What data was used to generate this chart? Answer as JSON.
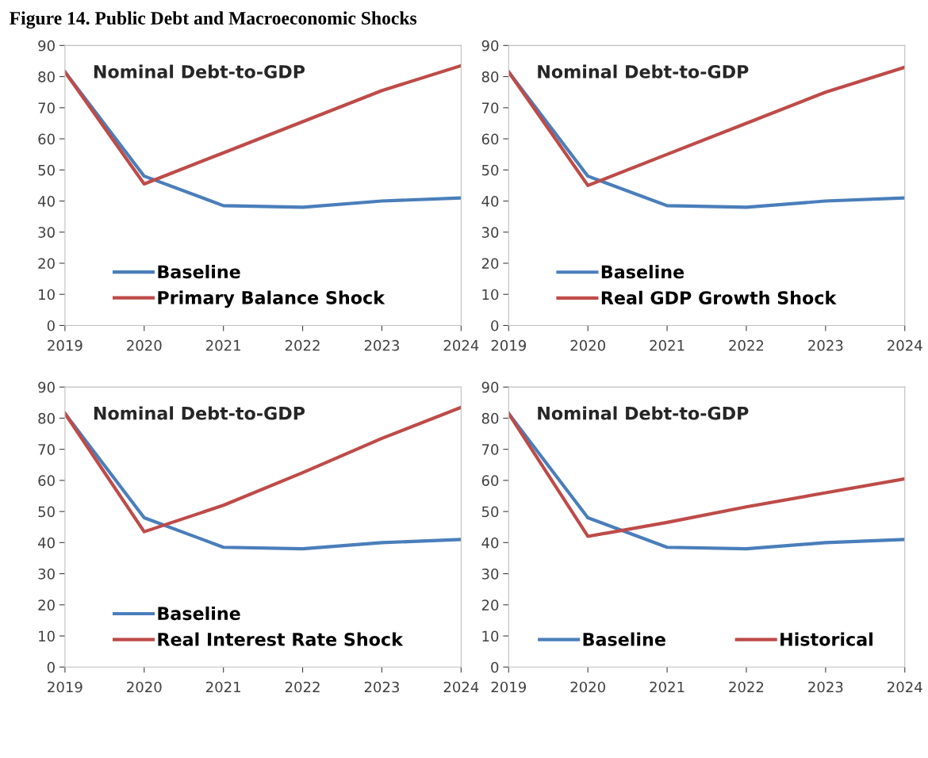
{
  "chart_data": [
    {
      "type": "line",
      "title": "Nominal Debt-to-GDP",
      "annotations": [
        "Figure 14. Public Debt and Macroeconomic Shocks"
      ],
      "categories": [
        "2019",
        "2020",
        "2021",
        "2022",
        "2023",
        "2024"
      ],
      "ylim": [
        0,
        90
      ],
      "yticks": [
        0,
        10,
        20,
        30,
        40,
        50,
        60,
        70,
        80,
        90
      ],
      "grid": false,
      "legend": "bottom left",
      "series": [
        {
          "name": "Baseline",
          "color": "#4a7ebb",
          "values": [
            81.5,
            48,
            38.5,
            38,
            40,
            41
          ]
        },
        {
          "name": "Primary Balance Shock",
          "color": "#be4b48",
          "values": [
            81.5,
            45.5,
            55.5,
            65.5,
            75.5,
            83.5
          ]
        }
      ]
    },
    {
      "type": "line",
      "title": "Nominal Debt-to-GDP",
      "categories": [
        "2019",
        "2020",
        "2021",
        "2022",
        "2023",
        "2024"
      ],
      "ylim": [
        0,
        90
      ],
      "yticks": [
        0,
        10,
        20,
        30,
        40,
        50,
        60,
        70,
        80,
        90
      ],
      "grid": false,
      "legend": "bottom left",
      "series": [
        {
          "name": "Baseline",
          "color": "#4a7ebb",
          "values": [
            81.5,
            48,
            38.5,
            38,
            40,
            41
          ]
        },
        {
          "name": "Real GDP Growth Shock",
          "color": "#be4b48",
          "values": [
            81.5,
            45,
            55,
            65,
            75,
            83
          ]
        }
      ]
    },
    {
      "type": "line",
      "title": "Nominal Debt-to-GDP",
      "categories": [
        "2019",
        "2020",
        "2021",
        "2022",
        "2023",
        "2024"
      ],
      "ylim": [
        0,
        90
      ],
      "yticks": [
        0,
        10,
        20,
        30,
        40,
        50,
        60,
        70,
        80,
        90
      ],
      "grid": false,
      "legend": "bottom left",
      "series": [
        {
          "name": "Baseline",
          "color": "#4a7ebb",
          "values": [
            81.5,
            48,
            38.5,
            38,
            40,
            41
          ]
        },
        {
          "name": "Real Interest Rate Shock",
          "color": "#be4b48",
          "values": [
            81.5,
            43.5,
            52,
            62.5,
            73.5,
            83.5
          ]
        }
      ]
    },
    {
      "type": "line",
      "title": "Nominal Debt-to-GDP",
      "categories": [
        "2019",
        "2020",
        "2021",
        "2022",
        "2023",
        "2024"
      ],
      "ylim": [
        0,
        90
      ],
      "yticks": [
        0,
        10,
        20,
        30,
        40,
        50,
        60,
        70,
        80,
        90
      ],
      "grid": false,
      "legend": "bottom",
      "series": [
        {
          "name": "Baseline",
          "color": "#4a7ebb",
          "values": [
            81.5,
            48,
            38.5,
            38,
            40,
            41
          ]
        },
        {
          "name": "Historical",
          "color": "#be4b48",
          "values": [
            81.5,
            42,
            46.5,
            51.5,
            56,
            60.5
          ]
        }
      ]
    }
  ]
}
